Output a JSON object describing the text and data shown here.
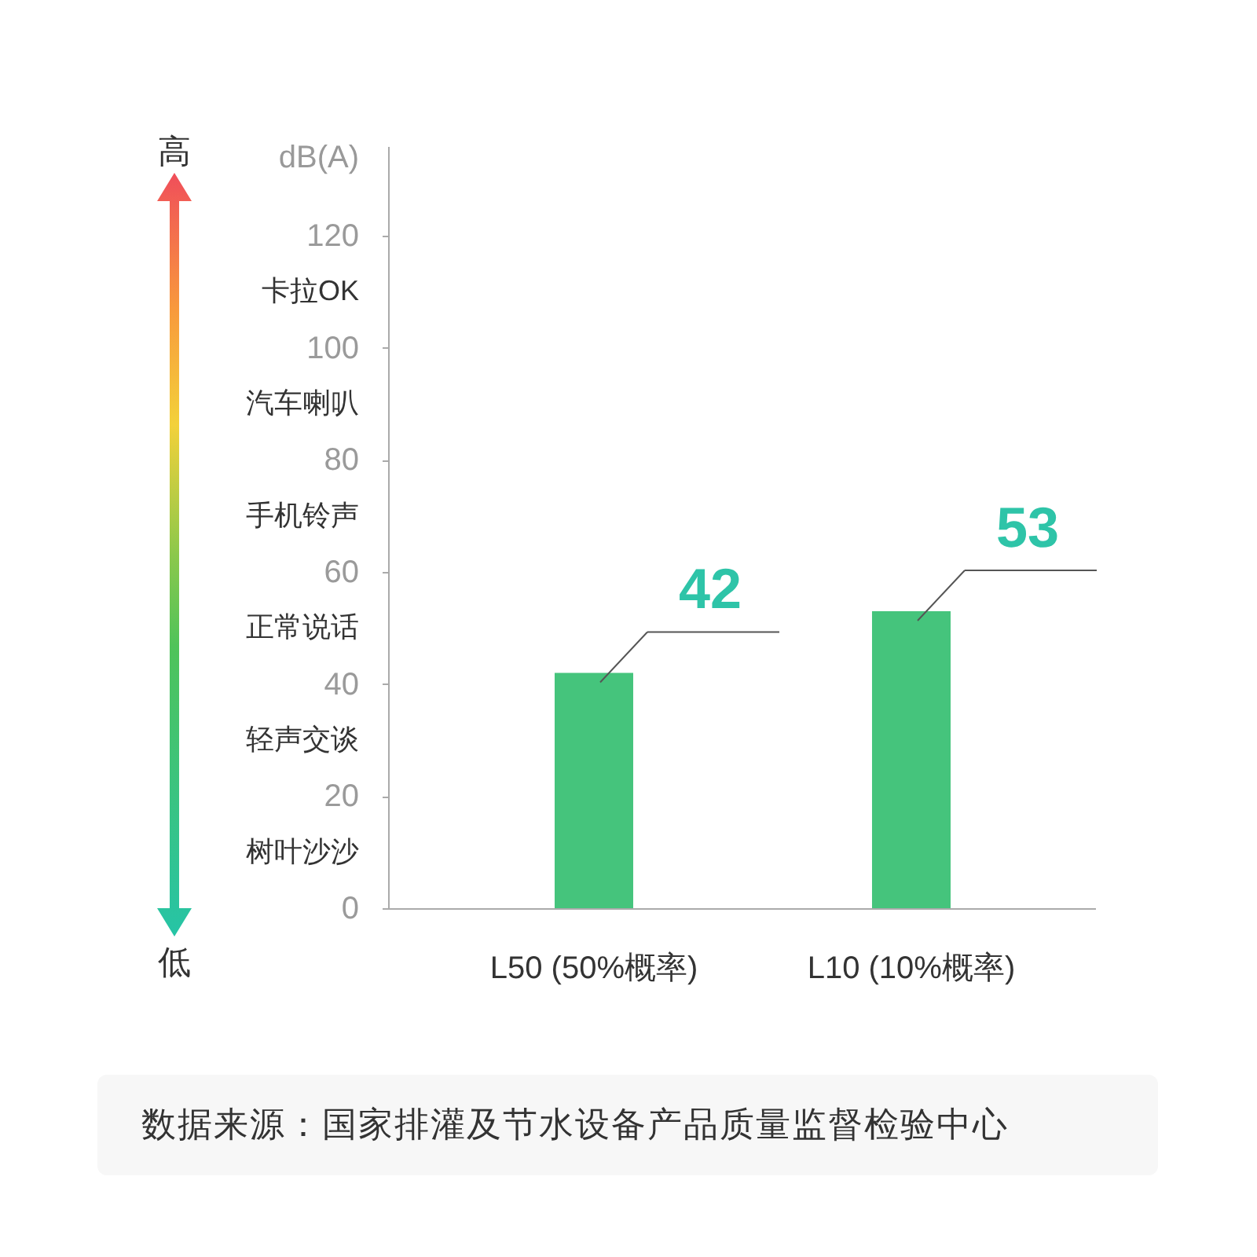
{
  "chart_data": {
    "type": "bar",
    "categories": [
      "L50 (50%概率)",
      "L10 (10%概率)"
    ],
    "values": [
      42,
      53
    ],
    "color": "#45c47c",
    "ylabel": "dB(A)",
    "ylim": [
      0,
      136
    ],
    "yticks": [
      0,
      {
        "value": 10,
        "label": "树叶沙沙"
      },
      20,
      {
        "value": 30,
        "label": "轻声交谈"
      },
      40,
      {
        "value": 50,
        "label": "正常说话"
      },
      60,
      {
        "value": 70,
        "label": "手机铃声"
      },
      80,
      {
        "value": 90,
        "label": "汽车喇叭"
      },
      100,
      {
        "value": 110,
        "label": "卡拉OK"
      },
      120
    ],
    "grid": false,
    "data_labels": true,
    "annotations": [
      "高",
      "低",
      "数据来源：国家排灌及节水设备产品质量监督检验中心"
    ]
  }
}
